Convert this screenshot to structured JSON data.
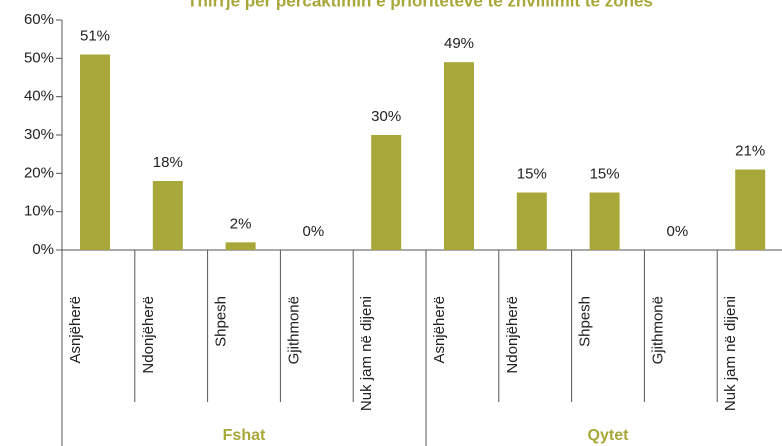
{
  "chart_data": {
    "type": "bar",
    "title": "Thirrje për përcaktimin e prioriteteve të zhvillimit të zonës",
    "categories": [
      "Asnjëherë",
      "Ndonjëherë",
      "Shpesh",
      "Gjithmonë",
      "Nuk jam në dijeni",
      "Asnjëherë",
      "Ndonjëherë",
      "Shpesh",
      "Gjithmonë",
      "Nuk jam në dijeni"
    ],
    "groups": [
      "Fshat",
      "Qytet"
    ],
    "values": [
      51,
      18,
      2,
      0,
      30,
      49,
      15,
      15,
      0,
      21
    ],
    "value_labels": [
      "51%",
      "18%",
      "2%",
      "0%",
      "30%",
      "49%",
      "15%",
      "15%",
      "0%",
      "21%"
    ],
    "color": "#a8a83a",
    "ylim": [
      0,
      60
    ],
    "yticks": [
      {
        "value": 0,
        "label": "0%"
      },
      {
        "value": 10,
        "label": "10%"
      },
      {
        "value": 20,
        "label": "20%"
      },
      {
        "value": 30,
        "label": "30%"
      },
      {
        "value": 40,
        "label": "40%"
      },
      {
        "value": 50,
        "label": "50%"
      },
      {
        "value": 60,
        "label": "60%"
      }
    ]
  }
}
